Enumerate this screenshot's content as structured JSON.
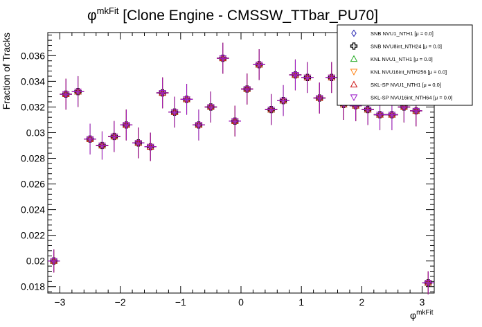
{
  "chart_data": {
    "type": "scatter",
    "title_base": "φ",
    "title_sup": "mkFit",
    "title_rest": " [Clone Engine - CMSSW_TTbar_PU70]",
    "xlabel_base": "φ",
    "xlabel_sup": "mkFit",
    "ylabel": "Fraction of Tracks",
    "xlim": [
      -3.2,
      3.2
    ],
    "ylim": [
      0.0175,
      0.0378
    ],
    "grid": false,
    "legend_position": "top-right",
    "x_ticks": [
      {
        "v": -3,
        "label": "−3"
      },
      {
        "v": -2,
        "label": "−2"
      },
      {
        "v": -1,
        "label": "−1"
      },
      {
        "v": 0,
        "label": "0"
      },
      {
        "v": 1,
        "label": "1"
      },
      {
        "v": 2,
        "label": "2"
      },
      {
        "v": 3,
        "label": "3"
      }
    ],
    "y_ticks": [
      {
        "v": 0.018,
        "label": "0.018"
      },
      {
        "v": 0.02,
        "label": "0.02"
      },
      {
        "v": 0.022,
        "label": "0.022"
      },
      {
        "v": 0.024,
        "label": "0.024"
      },
      {
        "v": 0.026,
        "label": "0.026"
      },
      {
        "v": 0.028,
        "label": "0.028"
      },
      {
        "v": 0.03,
        "label": "0.03"
      },
      {
        "v": 0.032,
        "label": "0.032"
      },
      {
        "v": 0.034,
        "label": "0.034"
      },
      {
        "v": 0.036,
        "label": "0.036"
      }
    ],
    "bin_half_width": 0.1,
    "x": [
      -3.1,
      -2.9,
      -2.7,
      -2.5,
      -2.3,
      -2.1,
      -1.9,
      -1.7,
      -1.5,
      -1.3,
      -1.1,
      -0.9,
      -0.7,
      -0.5,
      -0.3,
      -0.1,
      0.1,
      0.3,
      0.5,
      0.7,
      0.9,
      1.1,
      1.3,
      1.5,
      1.7,
      1.9,
      2.1,
      2.3,
      2.5,
      2.7,
      2.9,
      3.1
    ],
    "y": [
      0.02,
      0.033,
      0.0332,
      0.0295,
      0.029,
      0.0297,
      0.0306,
      0.0292,
      0.0289,
      0.0331,
      0.0316,
      0.0326,
      0.0306,
      0.032,
      0.0358,
      0.0309,
      0.0334,
      0.0353,
      0.0318,
      0.0325,
      0.0345,
      0.0343,
      0.0327,
      0.0343,
      0.0322,
      0.0321,
      0.0318,
      0.0314,
      0.0314,
      0.032,
      0.0317,
      0.0183
    ],
    "yerr": [
      0.0009,
      0.0012,
      0.0012,
      0.0012,
      0.0011,
      0.0012,
      0.0012,
      0.0012,
      0.0011,
      0.0012,
      0.0012,
      0.0012,
      0.0012,
      0.0012,
      0.0012,
      0.0012,
      0.0012,
      0.0012,
      0.0012,
      0.0012,
      0.0012,
      0.0012,
      0.0012,
      0.0012,
      0.0012,
      0.0012,
      0.0012,
      0.0012,
      0.0012,
      0.0012,
      0.0012,
      0.0009
    ],
    "series": [
      {
        "name": "SNB NVU1_NTH1",
        "mu": "[μ =  0.0]",
        "color": "#1f1fb0",
        "marker": "diamond"
      },
      {
        "name": "SNB NVU8int_NTH24",
        "mu": "[μ =  0.0]",
        "color": "#000000",
        "marker": "cross"
      },
      {
        "name": "KNL NVU1_NTH1",
        "mu": "[μ =  0.0]",
        "color": "#22aa22",
        "marker": "triangle-up"
      },
      {
        "name": "KNL NVU16int_NTH256",
        "mu": "[μ =  0.0]",
        "color": "#ff7f0e",
        "marker": "triangle-down"
      },
      {
        "name": "SKL-SP NVU1_NTH1",
        "mu": "[μ =  0.0]",
        "color": "#cc1111",
        "marker": "triangle-up"
      },
      {
        "name": "SKL-SP NVU16int_NTH64",
        "mu": "[μ =  0.0]",
        "color": "#9b19c9",
        "marker": "triangle-down"
      }
    ]
  }
}
